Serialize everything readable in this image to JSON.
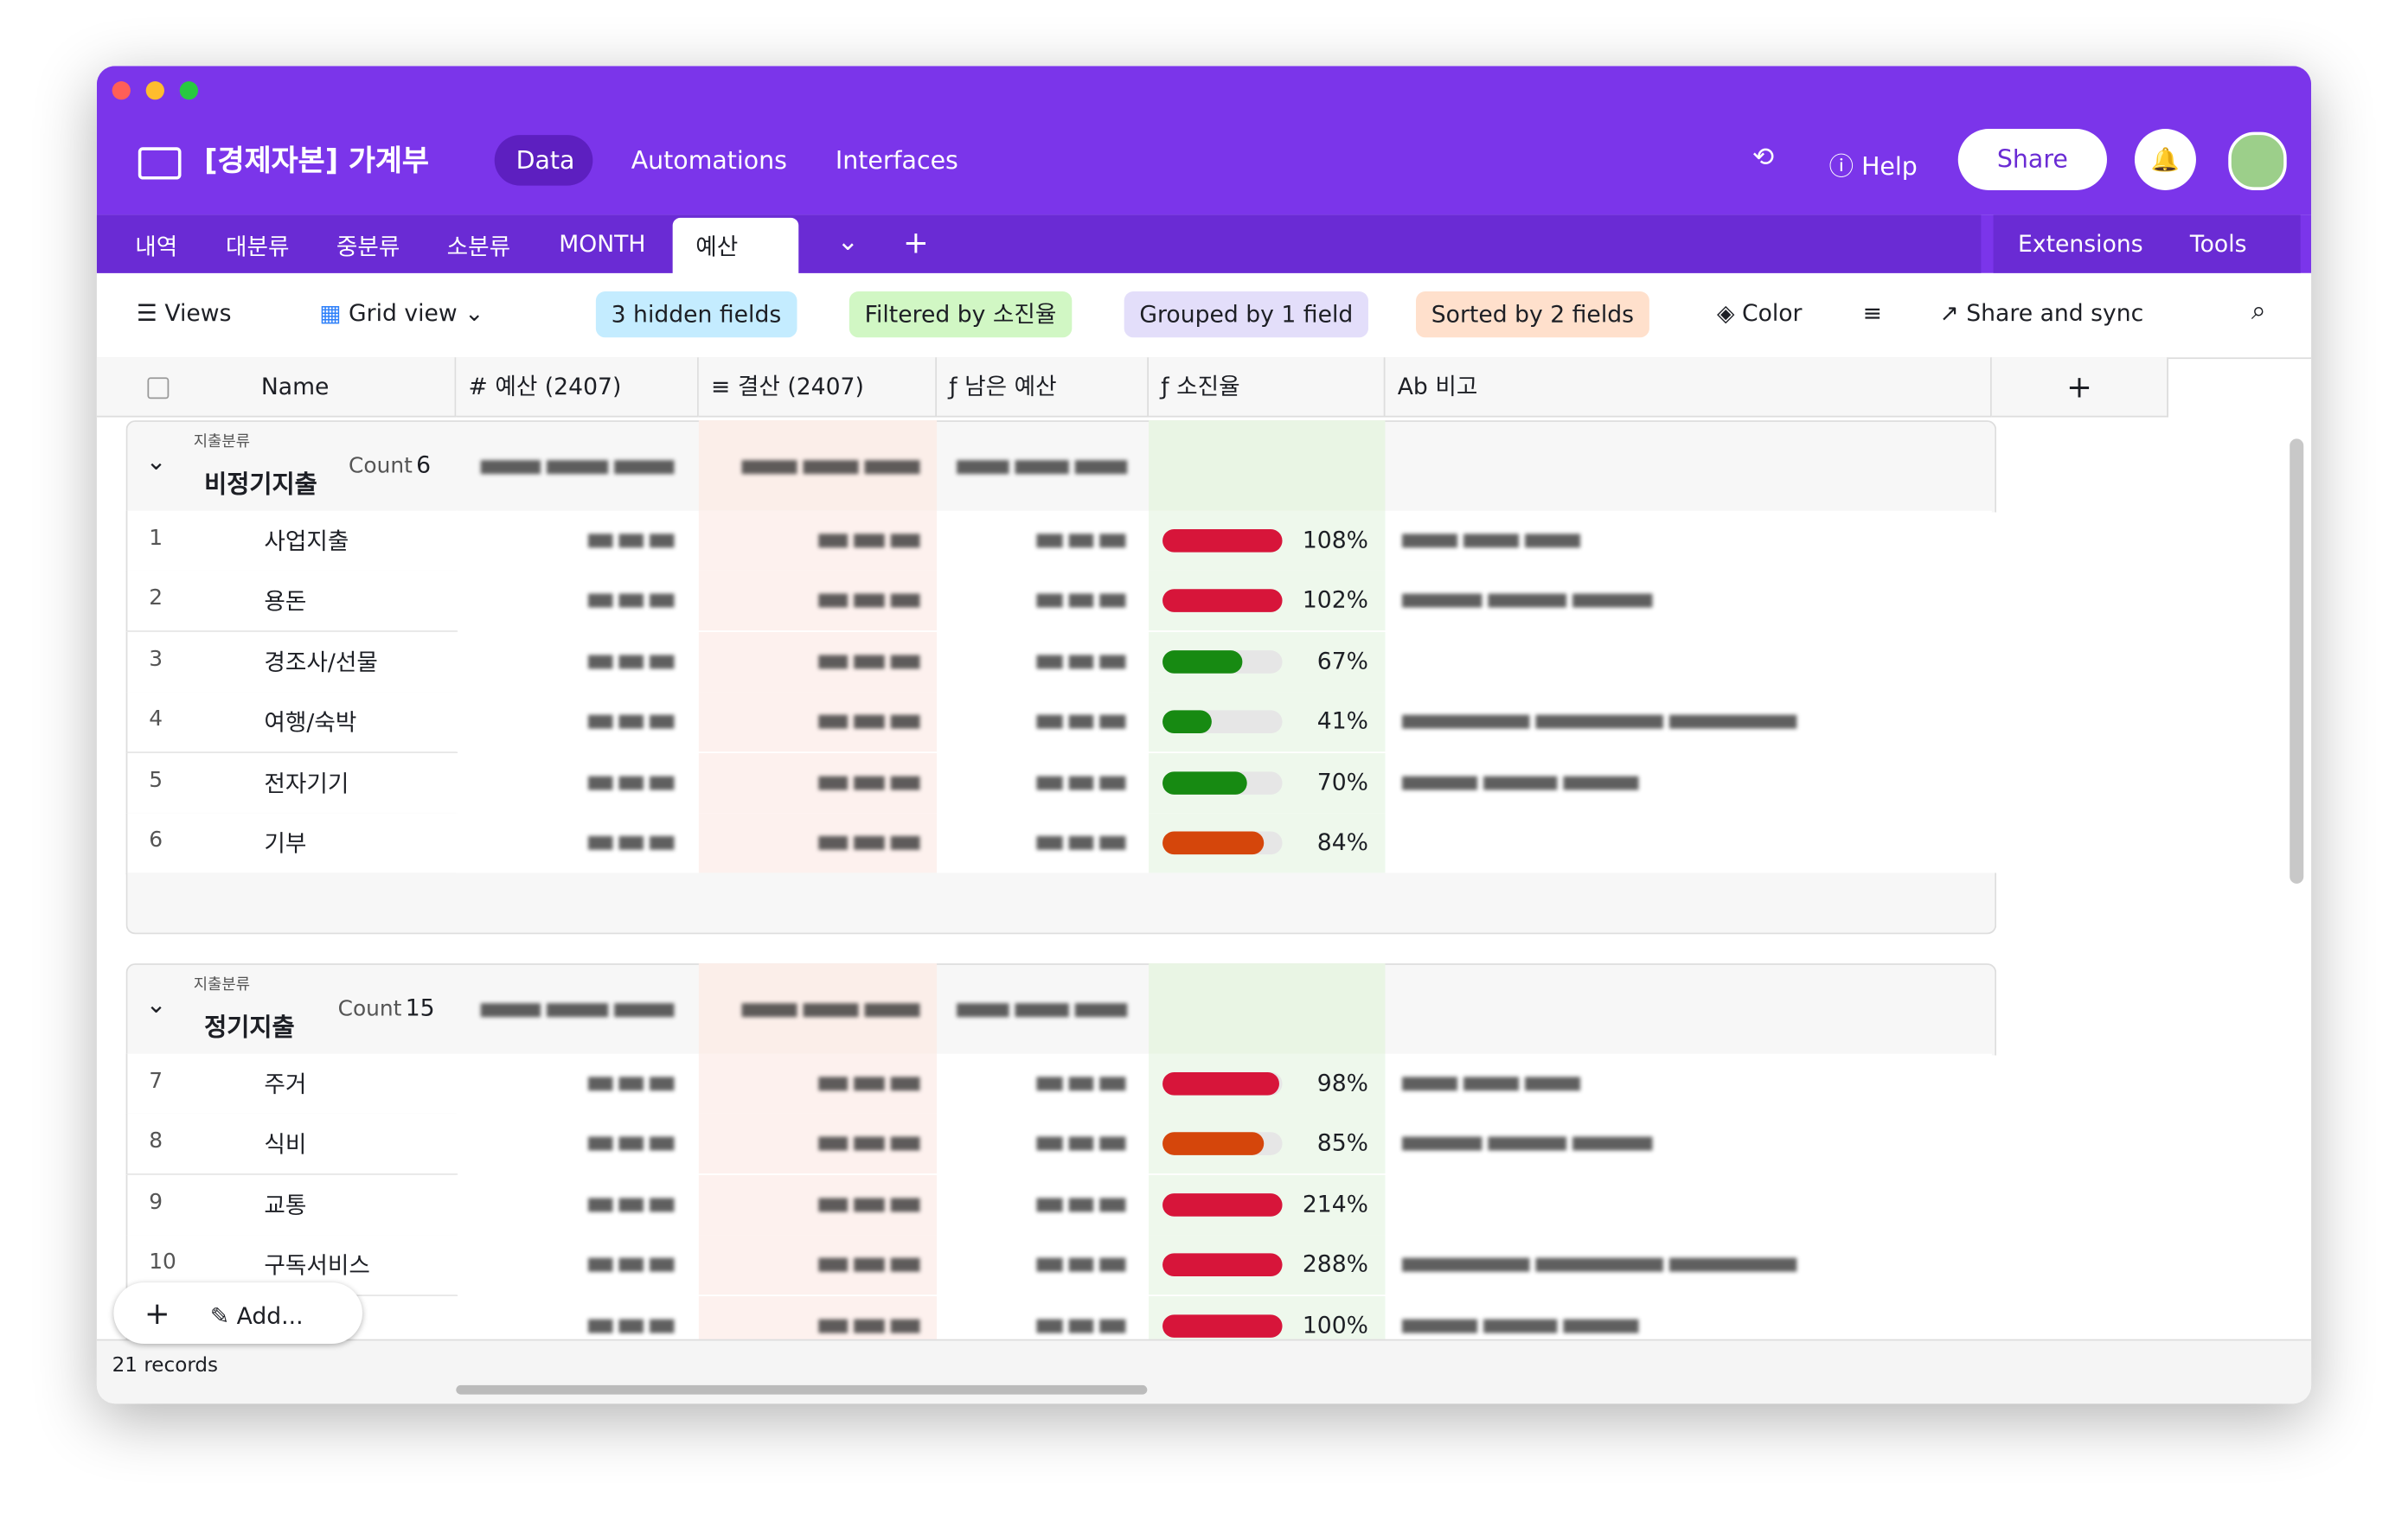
{
  "app": {
    "base": "[경제자본] 가계부",
    "nav": [
      "Data",
      "Automations",
      "Interfaces"
    ],
    "help": "Help",
    "share": "Share"
  },
  "tabs": [
    "내역",
    "대분류",
    "중분류",
    "소분류",
    "MONTH",
    "예산"
  ],
  "tools": [
    "Extensions",
    "Tools"
  ],
  "toolbar": {
    "views": "Views",
    "grid": "Grid view",
    "hidden": "3 hidden fields",
    "filter": "Filtered by 소진율",
    "group": "Grouped by 1 field",
    "sort": "Sorted by 2 fields",
    "color": "Color",
    "share": "Share and sync"
  },
  "columns": [
    "Name",
    "예산 (2407)",
    "결산 (2407)",
    "남은 예산",
    "소진율",
    "비고"
  ],
  "groups": [
    {
      "field": "지출분류",
      "name": "비정기지출",
      "count_label": "Count",
      "count": 6,
      "rows": [
        {
          "index": 1,
          "name": "사업지출",
          "rate": {
            "value": 108,
            "label": "108%"
          },
          "color": "#d7153a"
        },
        {
          "index": 2,
          "name": "용돈",
          "rate": {
            "value": 102,
            "label": "102%"
          },
          "color": "#d7153a"
        },
        {
          "index": 3,
          "name": "경조사/선물",
          "rate": {
            "value": 67,
            "label": "67%"
          },
          "color": "#178a12"
        },
        {
          "index": 4,
          "name": "여행/숙박",
          "rate": {
            "value": 41,
            "label": "41%"
          },
          "color": "#178a12"
        },
        {
          "index": 5,
          "name": "전자기기",
          "rate": {
            "value": 70,
            "label": "70%"
          },
          "color": "#178a12"
        },
        {
          "index": 6,
          "name": "기부",
          "rate": {
            "value": 84,
            "label": "84%"
          },
          "color": "#d5460b"
        }
      ]
    },
    {
      "field": "지출분류",
      "name": "정기지출",
      "count_label": "Count",
      "count": 15,
      "rows": [
        {
          "index": 7,
          "name": "주거",
          "rate": {
            "value": 98,
            "label": "98%"
          },
          "color": "#d7153a"
        },
        {
          "index": 8,
          "name": "식비",
          "rate": {
            "value": 85,
            "label": "85%"
          },
          "color": "#d5460b"
        },
        {
          "index": 9,
          "name": "교통",
          "rate": {
            "value": 214,
            "label": "214%"
          },
          "color": "#d7153a"
        },
        {
          "index": 10,
          "name": "구독서비스",
          "rate": {
            "value": 288,
            "label": "288%"
          },
          "color": "#d7153a"
        },
        {
          "rate": {
            "value": 100,
            "label": "100%"
          },
          "color": "#d7153a"
        }
      ]
    }
  ],
  "footer": {
    "add": "Add...",
    "records": "21 records"
  }
}
